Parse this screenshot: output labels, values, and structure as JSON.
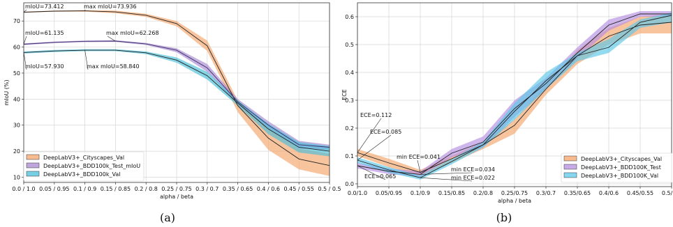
{
  "chart_data": [
    {
      "type": "line",
      "caption": "(a)",
      "xlabel": "alpha / beta",
      "ylabel": "mIoU (%)",
      "x_ticks": [
        "0.0 / 1.0",
        "0.05 / 0.95",
        "0.1 / 0.9",
        "0.15 / 0.85",
        "0.2 / 0.8",
        "0.25 / 0.75",
        "0.3 / 0.7",
        "0.35 / 0.65",
        "0.4 / 0.6",
        "0.45 / 0.55",
        "0.5 / 0.5"
      ],
      "ylim": [
        8,
        77
      ],
      "y_ticks": [
        10,
        20,
        30,
        40,
        50,
        60,
        70
      ],
      "grid": true,
      "legend_position": "bottom-left",
      "series": [
        {
          "name": "DeepLabV3+_Cityscapes_Val",
          "color": "#f4a46a",
          "mean": [
            73.4,
            73.8,
            73.9,
            73.5,
            72.2,
            69.0,
            60.5,
            37.5,
            25.0,
            17.0,
            14.5
          ],
          "upper": [
            73.6,
            74.0,
            74.2,
            74.0,
            72.8,
            70.0,
            62.5,
            39.5,
            28.5,
            21.0,
            19.0
          ],
          "lower": [
            73.2,
            73.6,
            73.6,
            73.0,
            71.6,
            68.0,
            58.5,
            35.0,
            20.5,
            13.0,
            10.5
          ]
        },
        {
          "name": "DeepLabV3+_BDD100k_Test_mIoU",
          "color": "#a888d0",
          "mean": [
            61.1,
            61.8,
            62.2,
            62.3,
            61.2,
            58.8,
            52.0,
            39.0,
            30.0,
            22.5,
            21.5
          ],
          "upper": [
            61.4,
            62.1,
            62.5,
            62.6,
            61.6,
            59.5,
            53.5,
            40.0,
            31.5,
            24.0,
            22.5
          ],
          "lower": [
            60.8,
            61.5,
            61.9,
            62.0,
            60.8,
            58.0,
            50.5,
            38.0,
            28.5,
            21.0,
            20.5
          ]
        },
        {
          "name": "DeepLabV3+_BDD100k_Val",
          "color": "#48bfd8",
          "mean": [
            57.9,
            58.5,
            58.8,
            58.8,
            57.8,
            55.0,
            49.0,
            38.5,
            28.5,
            21.5,
            20.0
          ],
          "upper": [
            58.3,
            58.9,
            59.2,
            59.2,
            58.3,
            56.0,
            50.5,
            39.5,
            30.5,
            23.5,
            22.0
          ],
          "lower": [
            57.5,
            58.1,
            58.4,
            58.4,
            57.3,
            54.0,
            47.5,
            37.5,
            26.5,
            19.5,
            18.0
          ]
        }
      ],
      "annotations": [
        {
          "text": "mIoU=73.412",
          "x": 0,
          "y": 73.412
        },
        {
          "text": "max mIoU=73.936",
          "x": 2,
          "y": 73.936
        },
        {
          "text": "mIoU=61.135",
          "x": 0,
          "y": 61.135
        },
        {
          "text": "max mIoU=62.268",
          "x": 3,
          "y": 62.268
        },
        {
          "text": "mIoU=57.930",
          "x": 0,
          "y": 57.93
        },
        {
          "text": "max mIoU=58.840",
          "x": 2,
          "y": 58.84
        }
      ]
    },
    {
      "type": "line",
      "caption": "(b)",
      "xlabel": "alpha / beta",
      "ylabel": "ECE",
      "x_ticks": [
        "0.0/1.0",
        "0.05/0.95",
        "0.1/0.9",
        "0.15/0.85",
        "0.2/0.8",
        "0.25/0.75",
        "0.3/0.7",
        "0.35/0.65",
        "0.4/0.6",
        "0.45/0.55",
        "0.5/0.5"
      ],
      "ylim": [
        -0.01,
        0.65
      ],
      "y_ticks": [
        0.0,
        0.1,
        0.2,
        0.3,
        0.4,
        0.5,
        0.6
      ],
      "grid": true,
      "legend_position": "bottom-right",
      "series": [
        {
          "name": "DeepLabV3+_Cityscapes_Val",
          "color": "#f4a46a",
          "mean": [
            0.112,
            0.075,
            0.041,
            0.09,
            0.14,
            0.21,
            0.34,
            0.46,
            0.53,
            0.57,
            0.58
          ],
          "upper": [
            0.125,
            0.09,
            0.05,
            0.1,
            0.15,
            0.23,
            0.355,
            0.48,
            0.56,
            0.6,
            0.61
          ],
          "lower": [
            0.1,
            0.06,
            0.03,
            0.075,
            0.125,
            0.18,
            0.32,
            0.43,
            0.5,
            0.54,
            0.54
          ]
        },
        {
          "name": "DeepLabV3+_BDD100K_Test",
          "color": "#b48ee0",
          "mean": [
            0.065,
            0.045,
            0.034,
            0.11,
            0.15,
            0.27,
            0.36,
            0.47,
            0.57,
            0.61,
            0.61
          ],
          "upper": [
            0.075,
            0.055,
            0.045,
            0.125,
            0.17,
            0.3,
            0.38,
            0.49,
            0.59,
            0.62,
            0.62
          ],
          "lower": [
            0.055,
            0.035,
            0.025,
            0.095,
            0.13,
            0.24,
            0.34,
            0.45,
            0.55,
            0.6,
            0.6
          ]
        },
        {
          "name": "DeepLabV3+_BDD100K_Val",
          "color": "#5cc8e8",
          "mean": [
            0.085,
            0.05,
            0.022,
            0.08,
            0.14,
            0.26,
            0.37,
            0.46,
            0.49,
            0.58,
            0.605
          ],
          "upper": [
            0.095,
            0.06,
            0.03,
            0.09,
            0.15,
            0.29,
            0.4,
            0.47,
            0.52,
            0.59,
            0.615
          ],
          "lower": [
            0.075,
            0.04,
            0.015,
            0.07,
            0.13,
            0.23,
            0.34,
            0.44,
            0.47,
            0.56,
            0.58
          ]
        }
      ],
      "annotations": [
        {
          "text": "ECE=0.112",
          "x": 0,
          "y": 0.112
        },
        {
          "text": "ECE=0.085",
          "x": 0,
          "y": 0.085
        },
        {
          "text": "min ECE=0.041",
          "x": 2,
          "y": 0.041
        },
        {
          "text": "min ECE=0.034",
          "x": 2,
          "y": 0.034
        },
        {
          "text": "min ECE=0.022",
          "x": 2,
          "y": 0.022
        },
        {
          "text": "ECE=0.065",
          "x": 0,
          "y": 0.065
        }
      ]
    }
  ]
}
